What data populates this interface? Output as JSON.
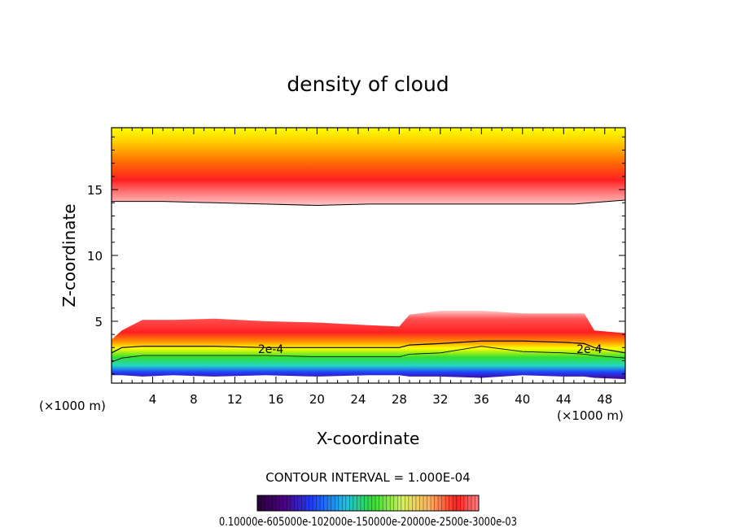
{
  "chart_data": {
    "type": "heatmap",
    "title": "density of cloud",
    "xlabel": "X-coordinate",
    "ylabel": "Z-coordinate",
    "x_unit_left": "(×1000 m)",
    "x_unit_right": "(×1000 m)",
    "xlim": [
      0,
      50
    ],
    "ylim": [
      0.3,
      19.7
    ],
    "x_ticks": [
      4,
      8,
      12,
      16,
      20,
      24,
      28,
      32,
      36,
      40,
      44,
      48
    ],
    "y_ticks": [
      5,
      10,
      15
    ],
    "contour_interval_text": "CONTOUR INTERVAL = 1.000E-04",
    "contour_label_text": "2e-4",
    "contour_labels": [
      {
        "text": "2e-4",
        "x": 15.5,
        "y": 2.9
      },
      {
        "text": "2e-4",
        "x": 46.5,
        "y": 2.9
      }
    ],
    "colorbar_label_text": "0.10000e-605000e-102000e-150000e-20000e-2500e-3000e-03",
    "colors": {
      "low": "#4b0082",
      "mid_low": "#1e40ff",
      "mid": "#33dd33",
      "mid_high": "#ffff00",
      "high": "#ff2020",
      "faint": "#ffc8c8"
    },
    "upper_layer": {
      "x": [
        0,
        5,
        10,
        15,
        20,
        25,
        30,
        35,
        40,
        45,
        50
      ],
      "bottom": [
        14.1,
        14.1,
        14.0,
        13.9,
        13.8,
        13.9,
        13.9,
        13.9,
        13.9,
        13.9,
        14.2
      ],
      "peak": [
        15.7,
        15.7,
        15.8,
        15.7,
        15.6,
        15.7,
        15.7,
        15.8,
        15.8,
        15.8,
        15.7
      ]
    },
    "lower_layer": {
      "x": [
        0,
        1,
        3,
        6,
        10,
        15,
        20,
        25,
        28,
        29,
        32,
        36,
        40,
        44,
        46,
        47,
        50
      ],
      "top": [
        3.6,
        4.3,
        5.1,
        5.1,
        5.2,
        5.0,
        4.9,
        4.7,
        4.6,
        5.5,
        5.8,
        5.8,
        5.6,
        5.6,
        5.6,
        4.3,
        4.1
      ],
      "contour_2e4": [
        2.6,
        3.0,
        3.1,
        3.1,
        3.1,
        3.0,
        3.0,
        3.0,
        3.0,
        3.2,
        3.3,
        3.5,
        3.5,
        3.4,
        3.3,
        3.0,
        2.6
      ],
      "green_top": [
        1.9,
        2.2,
        2.4,
        2.4,
        2.4,
        2.4,
        2.3,
        2.3,
        2.3,
        2.5,
        2.6,
        3.1,
        2.7,
        2.6,
        2.5,
        2.4,
        2.2
      ],
      "bottom": [
        0.9,
        0.9,
        0.8,
        0.9,
        0.8,
        0.9,
        0.8,
        0.9,
        0.9,
        0.8,
        0.8,
        0.7,
        0.9,
        0.8,
        0.8,
        0.7,
        0.6
      ]
    }
  }
}
